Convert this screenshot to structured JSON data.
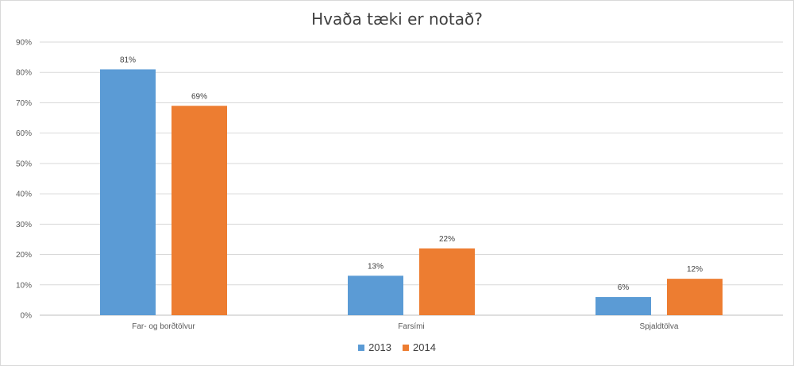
{
  "chart_data": {
    "type": "bar",
    "title": "Hvaða tæki er notað?",
    "categories": [
      "Far- og borðtölvur",
      "Farsími",
      "Spjaldtölva"
    ],
    "series": [
      {
        "name": "2013",
        "values": [
          81,
          13,
          6
        ],
        "labels": [
          "81%",
          "13%",
          "6%"
        ],
        "color": "#5b9bd5"
      },
      {
        "name": "2014",
        "values": [
          69,
          22,
          12
        ],
        "labels": [
          "69%",
          "22%",
          "12%"
        ],
        "color": "#ed7d31"
      }
    ],
    "yticks": [
      "0%",
      "10%",
      "20%",
      "30%",
      "40%",
      "50%",
      "60%",
      "70%",
      "80%",
      "90%"
    ],
    "ylim": [
      0,
      90
    ],
    "grid": true,
    "legend_position": "bottom"
  }
}
